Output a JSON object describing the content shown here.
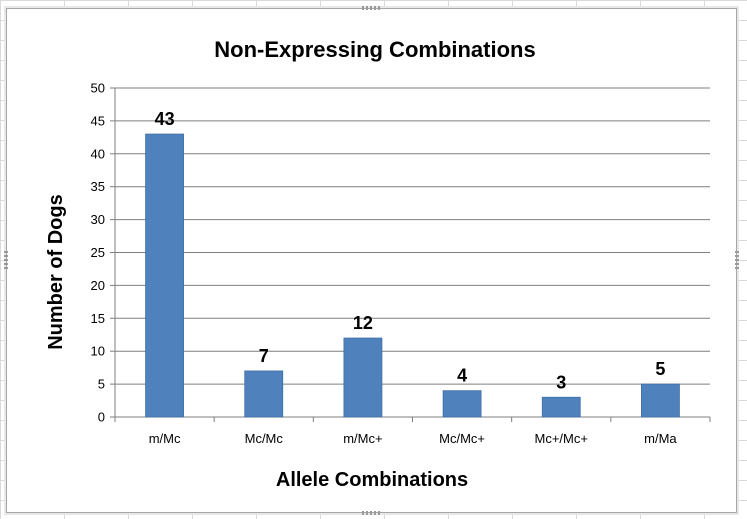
{
  "colors": {
    "bar": "#4f81bd",
    "bar_stroke": "#3f6ea6",
    "gridline": "#7f7f7f",
    "axis": "#7f7f7f"
  },
  "chart_data": {
    "type": "bar",
    "title": "Non-Expressing  Combinations",
    "xlabel": "Allele Combinations",
    "ylabel": "Number of Dogs",
    "categories": [
      "m/Mc",
      "Mc/Mc",
      "m/Mc+",
      "Mc/Mc+",
      "Mc+/Mc+",
      "m/Ma"
    ],
    "values": [
      43,
      7,
      12,
      4,
      3,
      5
    ],
    "data_labels": [
      "43",
      "7",
      "12",
      "4",
      "3",
      "5"
    ],
    "ylim": [
      0,
      50
    ],
    "y_ticks": [
      "0",
      "5",
      "10",
      "15",
      "20",
      "25",
      "30",
      "35",
      "40",
      "45",
      "50"
    ],
    "grid": true,
    "legend": "none"
  }
}
